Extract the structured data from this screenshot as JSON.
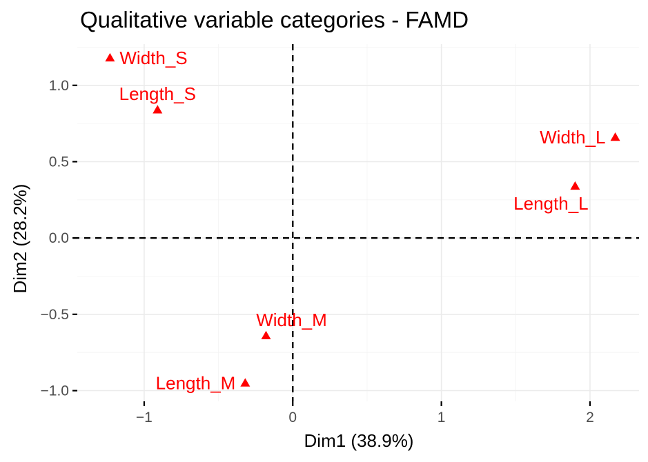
{
  "chart_data": {
    "type": "scatter",
    "title": "Qualitative variable categories - FAMD",
    "xlabel": "Dim1 (38.9%)",
    "ylabel": "Dim2 (28.2%)",
    "xlim": [
      -1.45,
      2.33
    ],
    "ylim": [
      -1.07,
      1.27
    ],
    "x_ticks": [
      -1,
      0,
      1,
      2
    ],
    "x_tick_labels": [
      "−1",
      "0",
      "1",
      "2"
    ],
    "y_ticks": [
      -1.0,
      -0.5,
      0.0,
      0.5,
      1.0
    ],
    "y_tick_labels": [
      "−1.0",
      "−0.5",
      "0.0",
      "0.5",
      "1.0"
    ],
    "grid": true,
    "reference_lines": {
      "x": 0,
      "y": 0
    },
    "marker": "triangle",
    "color": "#ff0000",
    "points": [
      {
        "label": "Width_S",
        "x": -1.23,
        "y": 1.18,
        "label_pos": "right"
      },
      {
        "label": "Length_S",
        "x": -0.91,
        "y": 0.84,
        "label_pos": "above"
      },
      {
        "label": "Width_L",
        "x": 2.17,
        "y": 0.66,
        "label_pos": "left"
      },
      {
        "label": "Length_L",
        "x": 1.9,
        "y": 0.34,
        "label_pos": "below-left"
      },
      {
        "label": "Width_M",
        "x": -0.18,
        "y": -0.64,
        "label_pos": "above-right"
      },
      {
        "label": "Length_M",
        "x": -0.32,
        "y": -0.95,
        "label_pos": "left"
      }
    ]
  }
}
